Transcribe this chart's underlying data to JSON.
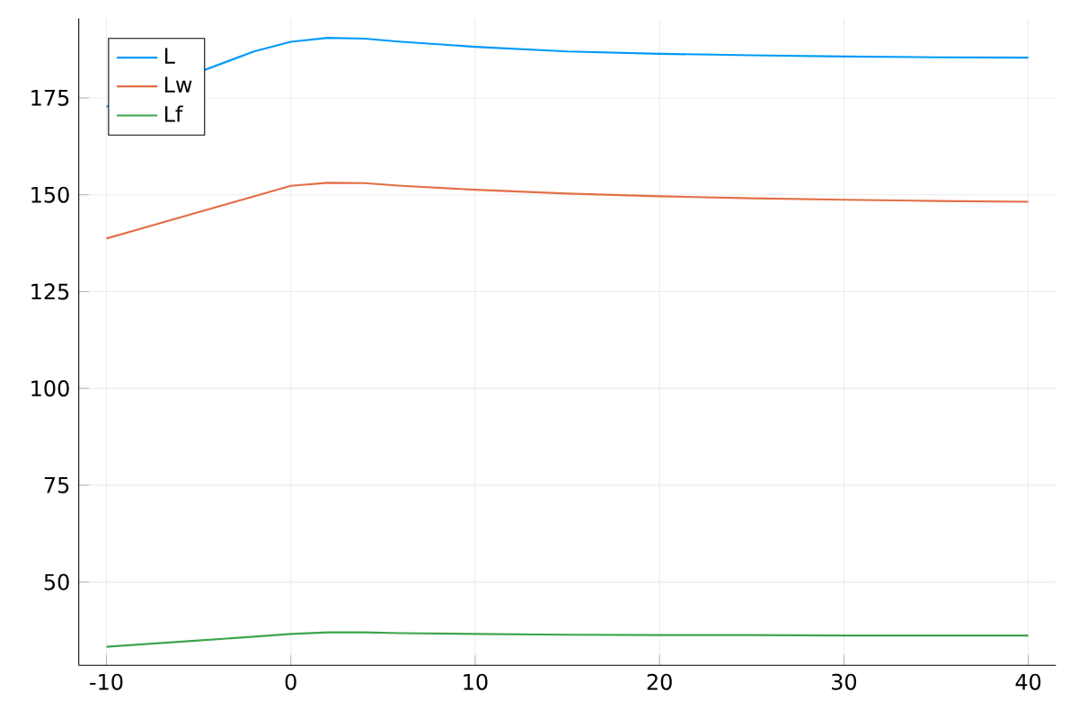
{
  "chart_data": {
    "type": "line",
    "x": [
      -10,
      -5,
      -2,
      0,
      2,
      4,
      6,
      10,
      15,
      20,
      25,
      30,
      35,
      40
    ],
    "series": [
      {
        "name": "L",
        "color": "#009af9",
        "values": [
          172.7,
          null,
          187,
          189.5,
          190.5,
          190.3,
          189.5,
          188.2,
          187,
          186.4,
          186,
          185.7,
          185.5,
          185.4
        ]
      },
      {
        "name": "Lw",
        "color": "#e26f46",
        "values": [
          138.7,
          145.5,
          149.6,
          152.3,
          153.1,
          153,
          152.3,
          151.3,
          150.3,
          149.6,
          149.1,
          148.7,
          148.4,
          148.2
        ]
      },
      {
        "name": "Lf",
        "color": "#3da44d",
        "values": [
          33.3,
          34.9,
          35.9,
          36.6,
          37,
          37,
          36.8,
          36.6,
          36.4,
          36.3,
          36.3,
          36.2,
          36.2,
          36.2
        ]
      }
    ],
    "xlim": [
      -11.5,
      41.5
    ],
    "ylim": [
      28.5,
      195.5
    ],
    "xticks": [
      -10,
      0,
      10,
      20,
      30,
      40
    ],
    "yticks": [
      50,
      75,
      100,
      125,
      150,
      175
    ],
    "grid": true,
    "legend": "top left",
    "marker": "none",
    "line_style": "solid"
  }
}
